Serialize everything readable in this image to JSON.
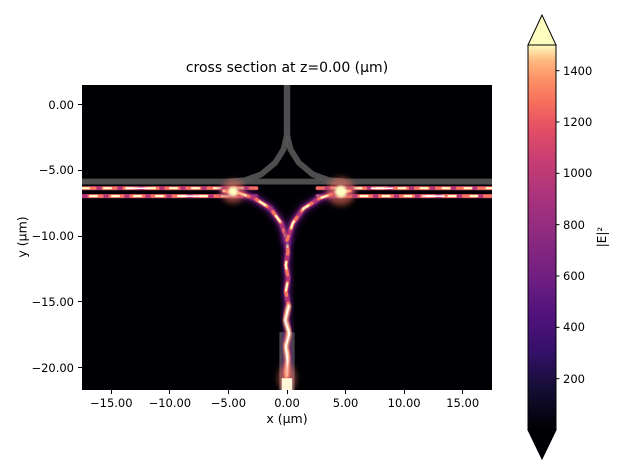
{
  "chart_data": {
    "type": "heatmap",
    "title": "cross section at z=0.00 (μm)",
    "xlabel": "x (μm)",
    "ylabel": "y (μm)",
    "xlim": [
      -17.5,
      17.5
    ],
    "ylim": [
      -21.7,
      1.5
    ],
    "xticks": [
      -15,
      -10,
      -5,
      0,
      5,
      10,
      15
    ],
    "xtick_labels": [
      "−15.00",
      "−10.00",
      "−5.00",
      "0.00",
      "5.00",
      "10.00",
      "15.00"
    ],
    "yticks": [
      0,
      -5,
      -10,
      -15,
      -20
    ],
    "ytick_labels": [
      "0.00",
      "−5.00",
      "−10.00",
      "−15.00",
      "−20.00"
    ],
    "grid": false,
    "colormap": "magma",
    "background_value": 0,
    "palette": {
      "bg": "#000004",
      "haze": "#5f187f",
      "mid": "#b73779",
      "hot": "#f8765c",
      "core": "#fcfdbf",
      "overlay_gray": "#565656"
    },
    "colorbar": {
      "label": "|E|²",
      "vmin": 0,
      "vmax": 1500,
      "ticks": [
        200,
        400,
        600,
        800,
        1000,
        1200,
        1400
      ],
      "extend": "both",
      "gradient": [
        [
          "0",
          "#000004"
        ],
        [
          "0.1",
          "#120d31"
        ],
        [
          "0.2",
          "#331068"
        ],
        [
          "0.3",
          "#51127c"
        ],
        [
          "0.4",
          "#711f81"
        ],
        [
          "0.5",
          "#8c2981"
        ],
        [
          "0.6",
          "#a8327d"
        ],
        [
          "0.7",
          "#c73e73"
        ],
        [
          "0.78",
          "#e34e65"
        ],
        [
          "0.85",
          "#f66e5c"
        ],
        [
          "0.91",
          "#fc9065"
        ],
        [
          "0.96",
          "#feb97f"
        ],
        [
          "1",
          "#fcfdbf"
        ]
      ]
    },
    "structure_overlay": {
      "color": "#565656",
      "paths": [
        {
          "name": "input-stem",
          "width_um": 0.55,
          "points": [
            [
              0,
              1.5
            ],
            [
              0,
              -2.3
            ]
          ]
        },
        {
          "name": "splitter-left",
          "width_um": 0.5,
          "points": [
            [
              0,
              -2.3
            ],
            [
              -0.3,
              -3.4
            ],
            [
              -1.0,
              -4.4
            ],
            [
              -2.2,
              -5.3
            ],
            [
              -3.6,
              -5.75
            ],
            [
              -5.0,
              -5.85
            ]
          ]
        },
        {
          "name": "splitter-right",
          "width_um": 0.5,
          "points": [
            [
              0,
              -2.3
            ],
            [
              0.3,
              -3.4
            ],
            [
              1.0,
              -4.4
            ],
            [
              2.2,
              -5.3
            ],
            [
              3.6,
              -5.75
            ],
            [
              5.0,
              -5.85
            ]
          ]
        },
        {
          "name": "bus-slab",
          "width_um": 0.5,
          "points": [
            [
              -17.5,
              -5.85
            ],
            [
              17.5,
              -5.85
            ]
          ]
        }
      ],
      "rects": [
        {
          "name": "bottom-port",
          "x": [
            -0.65,
            0.65
          ],
          "y": [
            -21.7,
            -17.3
          ]
        }
      ]
    },
    "field_features": {
      "paths": [
        {
          "name": "bus-upper-left",
          "intensity": "high",
          "points": [
            [
              -17.5,
              -6.35
            ],
            [
              -2.6,
              -6.35
            ]
          ]
        },
        {
          "name": "bus-upper-right",
          "intensity": "high",
          "points": [
            [
              2.6,
              -6.35
            ],
            [
              17.5,
              -6.35
            ]
          ]
        },
        {
          "name": "bus-lower-left",
          "intensity": "high",
          "points": [
            [
              -17.5,
              -6.95
            ],
            [
              -2.6,
              -6.95
            ]
          ]
        },
        {
          "name": "bus-lower-right",
          "intensity": "high",
          "points": [
            [
              2.6,
              -6.95
            ],
            [
              17.5,
              -6.95
            ]
          ]
        },
        {
          "name": "bus-center",
          "intensity": "low",
          "points": [
            [
              -2.6,
              -6.6
            ],
            [
              2.6,
              -6.6
            ]
          ]
        },
        {
          "name": "trunk",
          "intensity": "high",
          "points": [
            [
              0,
              -21.2
            ],
            [
              -0.12,
              -20.2
            ],
            [
              0.12,
              -19.2
            ],
            [
              -0.12,
              -18.2
            ],
            [
              0.15,
              -17.2
            ],
            [
              -0.12,
              -16.2
            ],
            [
              0.12,
              -15.2
            ],
            [
              -0.1,
              -14.2
            ],
            [
              0.1,
              -13.2
            ],
            [
              -0.1,
              -12.2
            ],
            [
              0.08,
              -11.2
            ],
            [
              0,
              -10.3
            ]
          ]
        },
        {
          "name": "branch-left",
          "intensity": "high",
          "points": [
            [
              0,
              -10.3
            ],
            [
              -0.5,
              -9.0
            ],
            [
              -1.4,
              -7.9
            ],
            [
              -2.8,
              -7.1
            ],
            [
              -4.2,
              -6.7
            ],
            [
              -5.4,
              -6.55
            ]
          ]
        },
        {
          "name": "branch-right",
          "intensity": "high",
          "points": [
            [
              0,
              -10.3
            ],
            [
              0.5,
              -9.0
            ],
            [
              1.4,
              -7.9
            ],
            [
              2.8,
              -7.1
            ],
            [
              4.2,
              -6.7
            ],
            [
              5.4,
              -6.55
            ]
          ]
        },
        {
          "name": "trunk-hotspot",
          "intensity": "peak",
          "points": [
            [
              0.15,
              -15.3
            ],
            [
              -0.15,
              -16.4
            ],
            [
              0.2,
              -17.4
            ],
            [
              -0.1,
              -18.4
            ],
            [
              0.05,
              -19.4
            ],
            [
              0,
              -20.6
            ]
          ]
        },
        {
          "name": "bus-peak-1",
          "intensity": "peak",
          "points": [
            [
              -13.6,
              -6.35
            ],
            [
              -11.8,
              -6.35
            ]
          ]
        },
        {
          "name": "bus-peak-2",
          "intensity": "peak",
          "points": [
            [
              -9.0,
              -6.95
            ],
            [
              -7.4,
              -6.95
            ]
          ]
        },
        {
          "name": "bus-peak-3",
          "intensity": "peak",
          "points": [
            [
              7.2,
              -6.35
            ],
            [
              9.0,
              -6.35
            ]
          ]
        },
        {
          "name": "bus-peak-4",
          "intensity": "peak",
          "points": [
            [
              11.6,
              -6.95
            ],
            [
              13.4,
              -6.95
            ]
          ]
        }
      ],
      "spots": [
        {
          "name": "junction-left",
          "x": -4.6,
          "y": -6.6,
          "r_um": 0.42
        },
        {
          "name": "junction-right",
          "x": 4.6,
          "y": -6.6,
          "r_um": 0.5
        }
      ],
      "source": {
        "x": [
          -0.45,
          0.45
        ],
        "y": [
          -21.7,
          -20.8
        ]
      }
    }
  }
}
